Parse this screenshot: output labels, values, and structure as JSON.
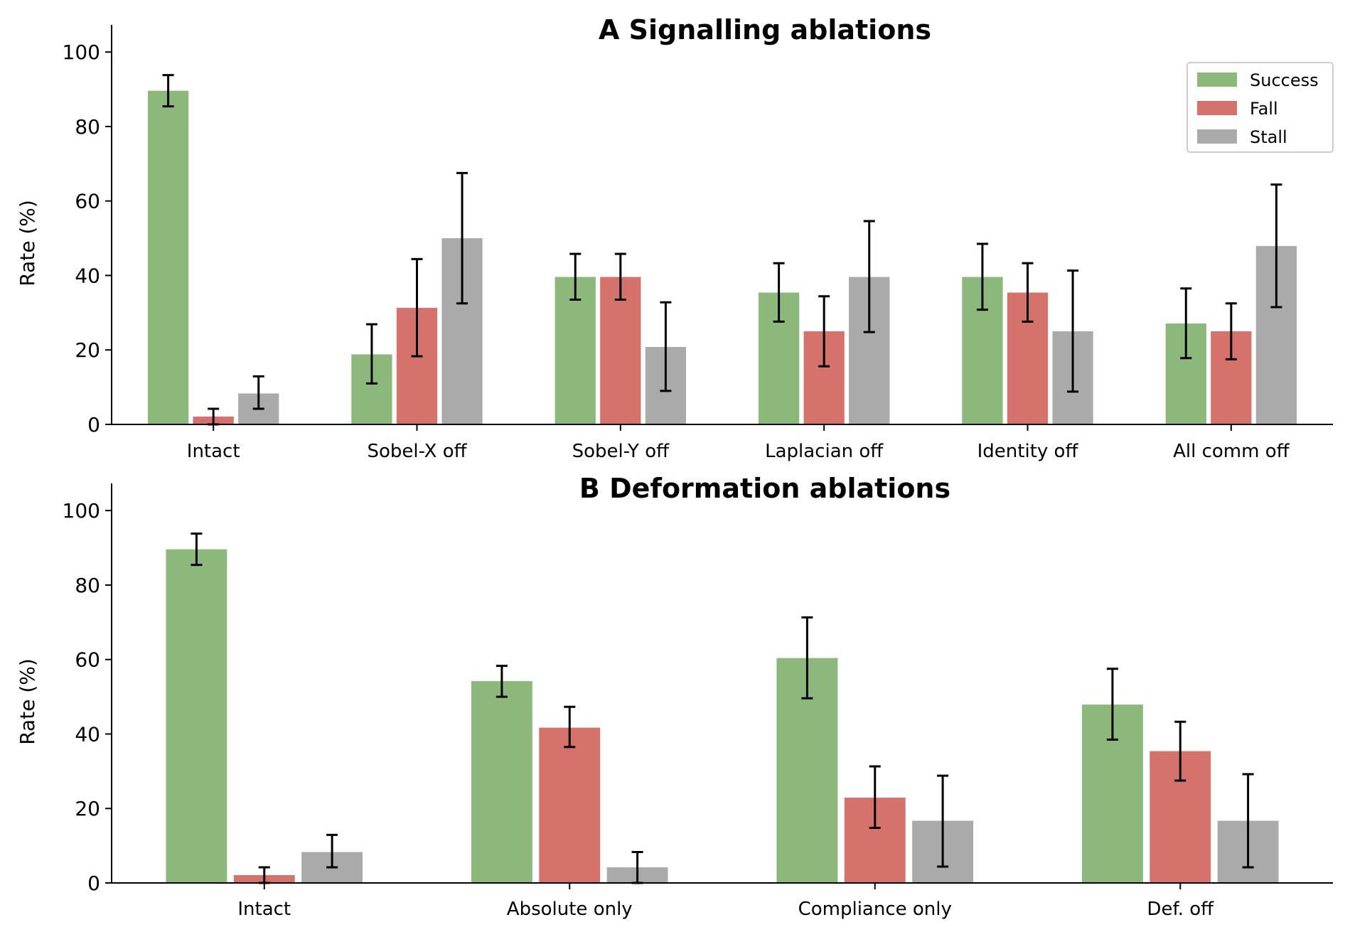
{
  "chart_data": [
    {
      "type": "bar",
      "title": "A  Signalling ablations",
      "ylabel": "Rate (%)",
      "xlabel": "",
      "ylim": [
        0,
        105
      ],
      "yticks": [
        0,
        20,
        40,
        60,
        80,
        100
      ],
      "categories": [
        "Intact",
        "Sobel-X off",
        "Sobel-Y off",
        "Laplacian off",
        "Identity off",
        "All comm off"
      ],
      "legend": "top-right",
      "series": [
        {
          "name": "Success",
          "color": "#8db87b",
          "values": [
            89.6,
            18.8,
            39.6,
            35.4,
            39.6,
            27.1
          ],
          "err_low": [
            85.4,
            11.0,
            33.5,
            27.6,
            30.8,
            17.8
          ],
          "err_high": [
            93.8,
            26.9,
            45.8,
            43.3,
            48.5,
            36.5
          ]
        },
        {
          "name": "Fall",
          "color": "#d4726b",
          "values": [
            2.1,
            31.3,
            39.6,
            25.0,
            35.4,
            25.0
          ],
          "err_low": [
            0.0,
            18.3,
            33.5,
            15.6,
            27.6,
            17.5
          ],
          "err_high": [
            4.2,
            44.4,
            45.8,
            34.4,
            43.3,
            32.5
          ]
        },
        {
          "name": "Stall",
          "color": "#aaaaaa",
          "values": [
            8.3,
            50.0,
            20.8,
            39.6,
            25.0,
            47.9
          ],
          "err_low": [
            4.2,
            32.5,
            9.0,
            24.8,
            8.8,
            31.5
          ],
          "err_high": [
            12.9,
            67.5,
            32.8,
            54.6,
            41.3,
            64.4
          ]
        }
      ]
    },
    {
      "type": "bar",
      "title": "B  Deformation ablations",
      "ylabel": "Rate (%)",
      "xlabel": "",
      "ylim": [
        0,
        105
      ],
      "yticks": [
        0,
        20,
        40,
        60,
        80,
        100
      ],
      "categories": [
        "Intact",
        "Absolute only",
        "Compliance only",
        "Def. off"
      ],
      "series": [
        {
          "name": "Success",
          "color": "#8db87b",
          "values": [
            89.6,
            54.2,
            60.4,
            47.9
          ],
          "err_low": [
            85.4,
            50.0,
            49.6,
            38.5
          ],
          "err_high": [
            93.8,
            58.3,
            71.3,
            57.5
          ]
        },
        {
          "name": "Fall",
          "color": "#d4726b",
          "values": [
            2.1,
            41.7,
            22.9,
            35.4
          ],
          "err_low": [
            0.0,
            36.5,
            14.8,
            27.5
          ],
          "err_high": [
            4.2,
            47.3,
            31.3,
            43.3
          ]
        },
        {
          "name": "Stall",
          "color": "#aaaaaa",
          "values": [
            8.3,
            4.2,
            16.7,
            16.7
          ],
          "err_low": [
            4.2,
            0.0,
            4.4,
            4.2
          ],
          "err_high": [
            12.9,
            8.3,
            28.8,
            29.2
          ]
        }
      ]
    }
  ]
}
